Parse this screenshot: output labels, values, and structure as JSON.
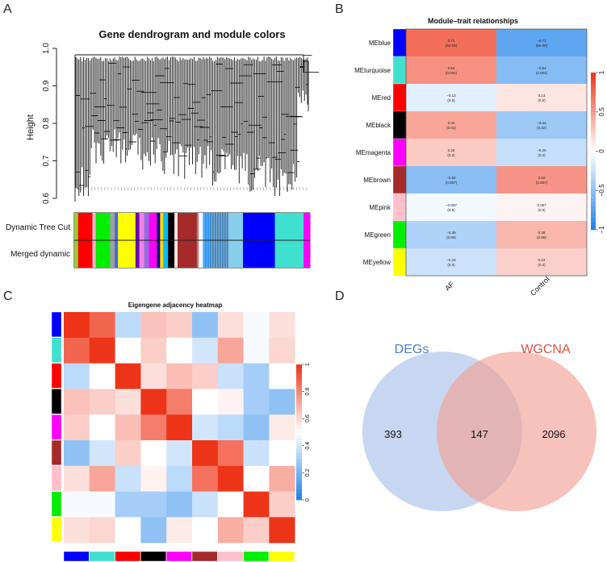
{
  "panels": {
    "A": {
      "label": "A",
      "chart_data": {
        "type": "dendrogram",
        "title": "Gene dendrogram and module colors",
        "ylabel": "Height",
        "ylim": [
          0.6,
          1.0
        ],
        "yticks": [
          "0.6",
          "0.7",
          "0.8",
          "0.9",
          "1.0"
        ],
        "color_rows": [
          "Dynamic Tree Cut",
          "Merged dynamic"
        ],
        "module_bands": [
          {
            "color": "#9acd32",
            "weight": 1.2
          },
          {
            "color": "#ff0000",
            "weight": 4.5
          },
          {
            "color": "#ffc0cb",
            "weight": 1.0
          },
          {
            "color": "#00ee00",
            "weight": 4.5
          },
          {
            "color": "#a0a0a0",
            "weight": 1.5
          },
          {
            "color": "#4169e1",
            "weight": 1.0
          },
          {
            "color": "#ffff00",
            "weight": 5.5
          },
          {
            "color": "#6a0dad",
            "weight": 1.2
          },
          {
            "color": "#ee82ee",
            "weight": 1.5
          },
          {
            "color": "#9370db",
            "weight": 1.5
          },
          {
            "color": "#ff00ff",
            "weight": 2.5
          },
          {
            "color": "#00008b",
            "weight": 1.0
          },
          {
            "color": "#ffd700",
            "weight": 1.0
          },
          {
            "color": "#00bfff",
            "weight": 1.5
          },
          {
            "color": "#000000",
            "weight": 2.0
          },
          {
            "color": "#ffe4e1",
            "weight": 1.0
          },
          {
            "color": "#a52a2a",
            "weight": 6.5
          },
          {
            "color": "#ffffff",
            "weight": 1.5
          },
          {
            "color": "#1e90ff",
            "weight": 2.0
          },
          {
            "color": "#4682b4",
            "weight": 6.0
          },
          {
            "color": "#87ceeb",
            "weight": 4.5
          },
          {
            "color": "#0000ff",
            "weight": 10.0
          },
          {
            "color": "#40e0d0",
            "weight": 9.0
          },
          {
            "color": "#ff00ff",
            "weight": 2.0
          }
        ]
      }
    },
    "B": {
      "label": "B",
      "chart_data": {
        "type": "heatmap",
        "title": "Module–trait relationships",
        "columns": [
          "AF",
          "Control"
        ],
        "rows": [
          {
            "name": "MEblue",
            "color": "#0000ff",
            "cells": [
              {
                "r": 0.71,
                "p": "(5e-05)",
                "text": "0.71"
              },
              {
                "r": -0.71,
                "p": "(5e-05)",
                "text": "−0.71"
              }
            ]
          },
          {
            "name": "MEturquoise",
            "color": "#40e0d0",
            "cells": [
              {
                "r": 0.54,
                "p": "(0.004)",
                "text": "0.54"
              },
              {
                "r": -0.54,
                "p": "(0.004)",
                "text": "−0.54"
              }
            ]
          },
          {
            "name": "MEred",
            "color": "#ff0000",
            "cells": [
              {
                "r": -0.13,
                "p": "(0.5)",
                "text": "−0.13"
              },
              {
                "r": 0.13,
                "p": "(0.5)",
                "text": "0.13"
              }
            ]
          },
          {
            "name": "MEblack",
            "color": "#000000",
            "cells": [
              {
                "r": 0.44,
                "p": "(0.02)",
                "text": "0.44"
              },
              {
                "r": -0.44,
                "p": "(0.02)",
                "text": "−0.44"
              }
            ]
          },
          {
            "name": "MEmagenta",
            "color": "#ff00ff",
            "cells": [
              {
                "r": 0.26,
                "p": "(0.2)",
                "text": "0.26"
              },
              {
                "r": -0.26,
                "p": "(0.2)",
                "text": "−0.26"
              }
            ]
          },
          {
            "name": "MEbrown",
            "color": "#a52a2a",
            "cells": [
              {
                "r": -0.52,
                "p": "(0.007)",
                "text": "−0.52"
              },
              {
                "r": 0.52,
                "p": "(0.007)",
                "text": "0.52"
              }
            ]
          },
          {
            "name": "MEpink",
            "color": "#ffc0cb",
            "cells": [
              {
                "r": -0.057,
                "p": "(0.8)",
                "text": "−0.057"
              },
              {
                "r": 0.057,
                "p": "(0.8)",
                "text": "0.057"
              }
            ]
          },
          {
            "name": "MEgreen",
            "color": "#00ee00",
            "cells": [
              {
                "r": -0.36,
                "p": "(0.08)",
                "text": "−0.36"
              },
              {
                "r": 0.36,
                "p": "(0.08)",
                "text": "0.36"
              }
            ]
          },
          {
            "name": "MEyellow",
            "color": "#ffff00",
            "cells": [
              {
                "r": -0.23,
                "p": "(0.3)",
                "text": "−0.23"
              },
              {
                "r": 0.23,
                "p": "(0.3)",
                "text": "0.23"
              }
            ]
          }
        ],
        "legend": {
          "range": [
            -1,
            1
          ],
          "ticks": [
            "1",
            "0.5",
            "0",
            "−0.5",
            "−1"
          ]
        }
      }
    },
    "C": {
      "label": "C",
      "chart_data": {
        "type": "heatmap",
        "title": "Eigengene adjacency heatmap",
        "module_colors": [
          "#0000ff",
          "#40e0d0",
          "#ff0000",
          "#000000",
          "#ff00ff",
          "#a52a2a",
          "#ffc0cb",
          "#00ee00",
          "#ffff00"
        ],
        "matrix": [
          [
            1.0,
            0.88,
            0.35,
            0.65,
            0.62,
            0.25,
            0.58,
            0.48,
            0.58
          ],
          [
            0.88,
            1.0,
            0.5,
            0.62,
            0.5,
            0.4,
            0.72,
            0.48,
            0.6
          ],
          [
            0.35,
            0.5,
            1.0,
            0.58,
            0.66,
            0.62,
            0.38,
            0.3,
            0.5
          ],
          [
            0.65,
            0.62,
            0.58,
            1.0,
            0.82,
            0.5,
            0.53,
            0.3,
            0.25
          ],
          [
            0.62,
            0.5,
            0.66,
            0.82,
            1.0,
            0.4,
            0.35,
            0.25,
            0.55
          ],
          [
            0.25,
            0.4,
            0.62,
            0.5,
            0.4,
            1.0,
            0.85,
            0.38,
            0.5
          ],
          [
            0.58,
            0.72,
            0.38,
            0.53,
            0.35,
            0.85,
            1.0,
            0.5,
            0.7
          ],
          [
            0.48,
            0.48,
            0.3,
            0.3,
            0.25,
            0.38,
            0.5,
            1.0,
            0.62
          ],
          [
            0.58,
            0.6,
            0.5,
            0.25,
            0.55,
            0.5,
            0.7,
            0.62,
            1.0
          ]
        ],
        "legend": {
          "range": [
            0,
            1
          ],
          "ticks": [
            "1",
            "0.8",
            "0.6",
            "0.4",
            "0.2",
            "0"
          ]
        }
      }
    },
    "D": {
      "label": "D",
      "chart_data": {
        "type": "venn",
        "sets": [
          {
            "name": "DEGs",
            "only": "393",
            "color": "#a9c1ea",
            "text_color": "#4a7fd1"
          },
          {
            "name": "WGCNA",
            "only": "2096",
            "color": "#f2a197",
            "text_color": "#e0513f"
          }
        ],
        "intersection": "147"
      }
    }
  }
}
